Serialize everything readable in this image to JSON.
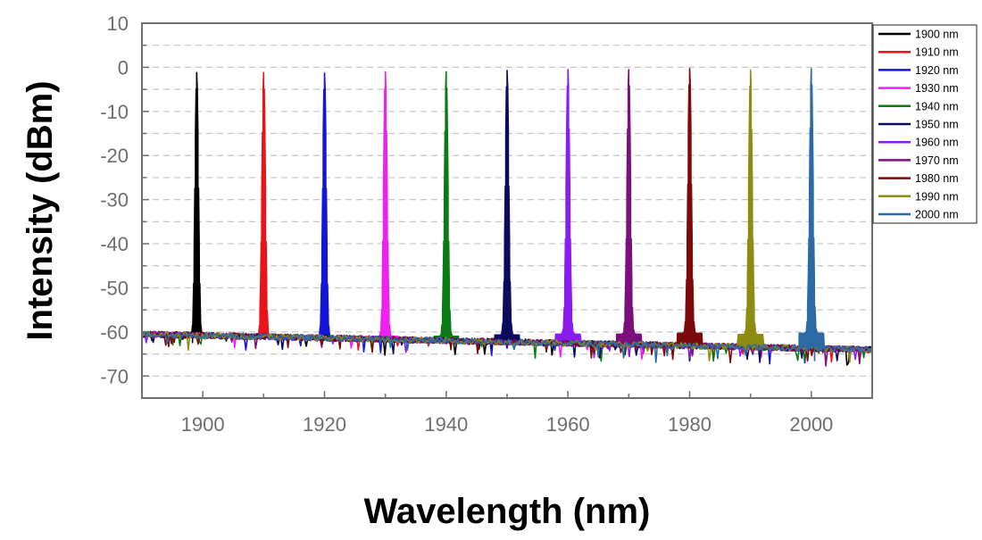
{
  "chart_data": {
    "type": "line",
    "title": "",
    "xlabel": "Wavelength (nm)",
    "ylabel": "Intensity (dBm)",
    "xlim": [
      1890,
      2010
    ],
    "ylim": [
      -75,
      10
    ],
    "xticks": [
      1900,
      1920,
      1940,
      1960,
      1980,
      2000
    ],
    "yticks": [
      10,
      0,
      -10,
      -20,
      -30,
      -40,
      -50,
      -60,
      -70
    ],
    "ytick_labels": [
      "10",
      "0",
      "-10",
      "-20",
      "-30",
      "-40",
      "-50",
      "-60",
      "-70"
    ],
    "grid": "horizontal dashed",
    "legend_position": "top-right",
    "baseline_start_dbm": -60.5,
    "baseline_end_dbm": -64,
    "series": [
      {
        "name": "1900 nm",
        "color": "#000000",
        "peak_wavelength": 1899,
        "peak_dbm": -1.2
      },
      {
        "name": "1910 nm",
        "color": "#e8141a",
        "peak_wavelength": 1910,
        "peak_dbm": -1.2
      },
      {
        "name": "1920 nm",
        "color": "#1515d6",
        "peak_wavelength": 1920,
        "peak_dbm": -1.3
      },
      {
        "name": "1930 nm",
        "color": "#ee22ee",
        "peak_wavelength": 1930,
        "peak_dbm": -1.0
      },
      {
        "name": "1940 nm",
        "color": "#0a7a12",
        "peak_wavelength": 1940,
        "peak_dbm": -1.0
      },
      {
        "name": "1950 nm",
        "color": "#0b0b5e",
        "peak_wavelength": 1950,
        "peak_dbm": -0.7
      },
      {
        "name": "1960 nm",
        "color": "#8a1cf0",
        "peak_wavelength": 1960,
        "peak_dbm": -0.5
      },
      {
        "name": "1970 nm",
        "color": "#7b0f7b",
        "peak_wavelength": 1970,
        "peak_dbm": -0.5
      },
      {
        "name": "1980 nm",
        "color": "#7c0a0a",
        "peak_wavelength": 1980,
        "peak_dbm": -0.3
      },
      {
        "name": "1990 nm",
        "color": "#8c8c12",
        "peak_wavelength": 1990,
        "peak_dbm": -0.6
      },
      {
        "name": "2000 nm",
        "color": "#2c6aa6",
        "peak_wavelength": 2000,
        "peak_dbm": -0.3
      }
    ]
  }
}
